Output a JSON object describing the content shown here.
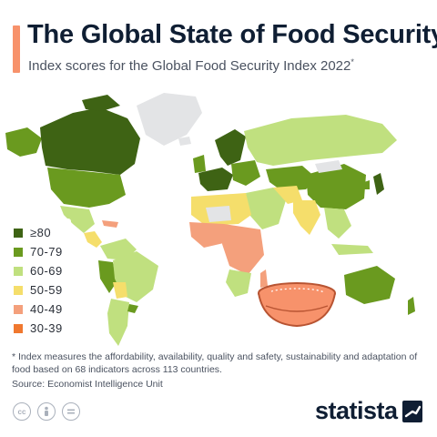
{
  "header": {
    "title": "The Global State of Food Security",
    "subtitle": "Index scores for the Global Food Security Index 2022",
    "subtitle_marker": "*",
    "accent_color": "#f7926b"
  },
  "legend": {
    "items": [
      {
        "label": "≥80",
        "color": "#3e6314"
      },
      {
        "label": "70-79",
        "color": "#6a9a1f"
      },
      {
        "label": "60-69",
        "color": "#c0e07f"
      },
      {
        "label": "50-59",
        "color": "#f5de6b"
      },
      {
        "label": "40-49",
        "color": "#f4a07c"
      },
      {
        "label": "30-39",
        "color": "#f0782f"
      }
    ]
  },
  "map": {
    "no_data_color": "#e3e4e6",
    "ocean_color": "#ffffff"
  },
  "footnote": "* Index measures the affordability, availability, quality and safety, sustainability and adaptation of food based on 68 indicators across 113 countries.",
  "source": "Source: Economist Intelligence Unit",
  "footer": {
    "license_icons": [
      "cc-icon",
      "attribution-icon",
      "no-derivatives-icon"
    ],
    "brand": "statista"
  }
}
